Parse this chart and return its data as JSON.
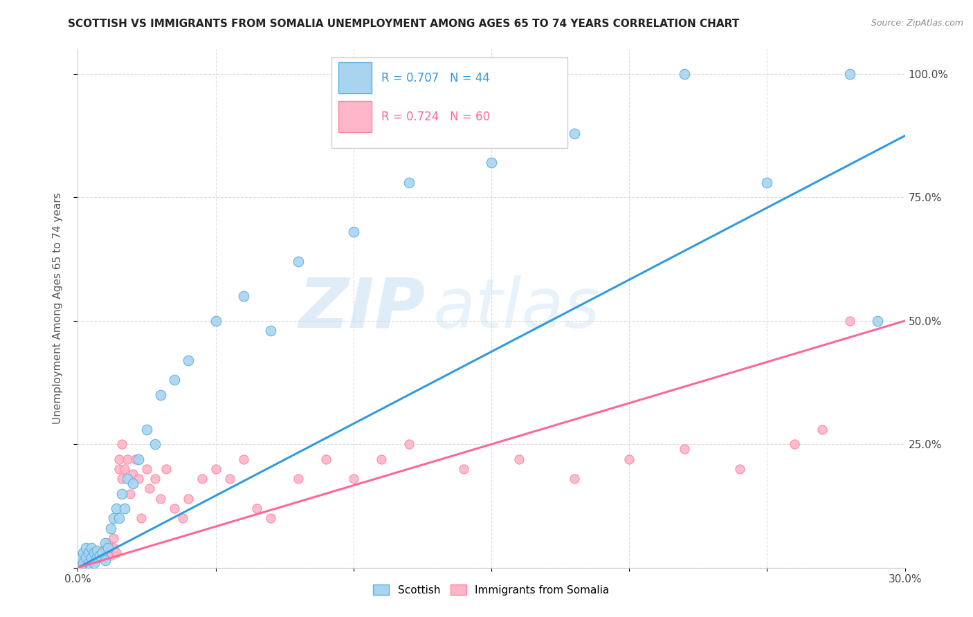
{
  "title": "SCOTTISH VS IMMIGRANTS FROM SOMALIA UNEMPLOYMENT AMONG AGES 65 TO 74 YEARS CORRELATION CHART",
  "source": "Source: ZipAtlas.com",
  "ylabel": "Unemployment Among Ages 65 to 74 years",
  "xlim": [
    0.0,
    0.3
  ],
  "ylim": [
    0.0,
    1.05
  ],
  "scottish_color": "#a8d4f0",
  "scottish_edge_color": "#5aaee0",
  "somalia_color": "#ffb6c8",
  "somalia_edge_color": "#ff80a0",
  "scottish_line_color": "#3399dd",
  "somalia_line_color": "#ff6699",
  "scottish_R": 0.707,
  "scottish_N": 44,
  "somalia_R": 0.724,
  "somalia_N": 60,
  "watermark_zip": "ZIP",
  "watermark_atlas": "atlas",
  "background_color": "#ffffff",
  "grid_color": "#dddddd",
  "scottish_line_x0": 0.0,
  "scottish_line_y0": 0.0,
  "scottish_line_x1": 0.3,
  "scottish_line_y1": 0.875,
  "somalia_line_x0": 0.0,
  "somalia_line_y0": 0.0,
  "somalia_line_x1": 0.3,
  "somalia_line_y1": 0.5,
  "scottish_scatter_x": [
    0.001,
    0.002,
    0.002,
    0.003,
    0.003,
    0.004,
    0.004,
    0.005,
    0.005,
    0.006,
    0.006,
    0.007,
    0.007,
    0.008,
    0.009,
    0.01,
    0.01,
    0.011,
    0.012,
    0.013,
    0.014,
    0.015,
    0.016,
    0.017,
    0.018,
    0.02,
    0.022,
    0.025,
    0.028,
    0.03,
    0.035,
    0.04,
    0.05,
    0.06,
    0.07,
    0.08,
    0.1,
    0.12,
    0.15,
    0.18,
    0.22,
    0.25,
    0.28,
    0.29
  ],
  "scottish_scatter_y": [
    0.02,
    0.01,
    0.03,
    0.02,
    0.04,
    0.01,
    0.03,
    0.02,
    0.04,
    0.01,
    0.03,
    0.02,
    0.035,
    0.025,
    0.03,
    0.05,
    0.015,
    0.04,
    0.08,
    0.1,
    0.12,
    0.1,
    0.15,
    0.12,
    0.18,
    0.17,
    0.22,
    0.28,
    0.25,
    0.35,
    0.38,
    0.42,
    0.5,
    0.55,
    0.48,
    0.62,
    0.68,
    0.78,
    0.82,
    0.88,
    1.0,
    0.78,
    1.0,
    0.5
  ],
  "somalia_scatter_x": [
    0.001,
    0.002,
    0.003,
    0.003,
    0.004,
    0.005,
    0.005,
    0.006,
    0.007,
    0.007,
    0.008,
    0.008,
    0.009,
    0.01,
    0.01,
    0.011,
    0.011,
    0.012,
    0.013,
    0.013,
    0.014,
    0.015,
    0.015,
    0.016,
    0.016,
    0.017,
    0.018,
    0.019,
    0.02,
    0.021,
    0.022,
    0.023,
    0.025,
    0.026,
    0.028,
    0.03,
    0.032,
    0.035,
    0.038,
    0.04,
    0.045,
    0.05,
    0.055,
    0.06,
    0.065,
    0.07,
    0.08,
    0.09,
    0.1,
    0.11,
    0.12,
    0.14,
    0.16,
    0.18,
    0.2,
    0.22,
    0.24,
    0.26,
    0.27,
    0.28
  ],
  "somalia_scatter_y": [
    0.01,
    0.015,
    0.02,
    0.025,
    0.018,
    0.02,
    0.03,
    0.015,
    0.025,
    0.035,
    0.02,
    0.03,
    0.025,
    0.02,
    0.04,
    0.03,
    0.05,
    0.025,
    0.04,
    0.06,
    0.03,
    0.2,
    0.22,
    0.18,
    0.25,
    0.2,
    0.22,
    0.15,
    0.19,
    0.22,
    0.18,
    0.1,
    0.2,
    0.16,
    0.18,
    0.14,
    0.2,
    0.12,
    0.1,
    0.14,
    0.18,
    0.2,
    0.18,
    0.22,
    0.12,
    0.1,
    0.18,
    0.22,
    0.18,
    0.22,
    0.25,
    0.2,
    0.22,
    0.18,
    0.22,
    0.24,
    0.2,
    0.25,
    0.28,
    0.5
  ]
}
